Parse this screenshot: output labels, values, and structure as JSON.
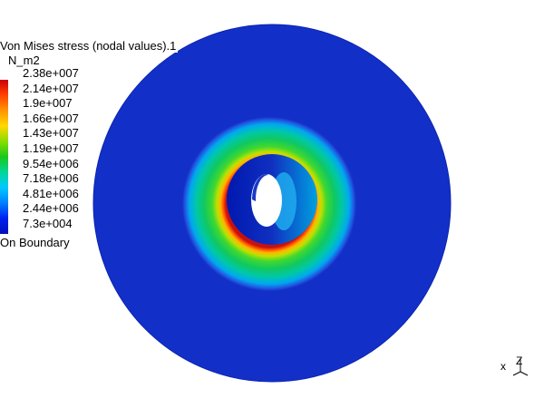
{
  "legend": {
    "title": "Von Mises stress (nodal values).1",
    "unit": "N_m2",
    "values": [
      "2.38e+007",
      "2.14e+007",
      "1.9e+007",
      "1.66e+007",
      "1.43e+007",
      "1.19e+007",
      "9.54e+006",
      "7.18e+006",
      "4.81e+006",
      "2.44e+006",
      "7.3e+004"
    ],
    "boundary_note": "On Boundary"
  },
  "axes": {
    "x_label": "x",
    "z_label": "Z"
  },
  "colors": {
    "background": "#ffffff",
    "disk_blue": "#1230c8",
    "ring_green": "#18c850",
    "hot_red": "#e02010"
  }
}
